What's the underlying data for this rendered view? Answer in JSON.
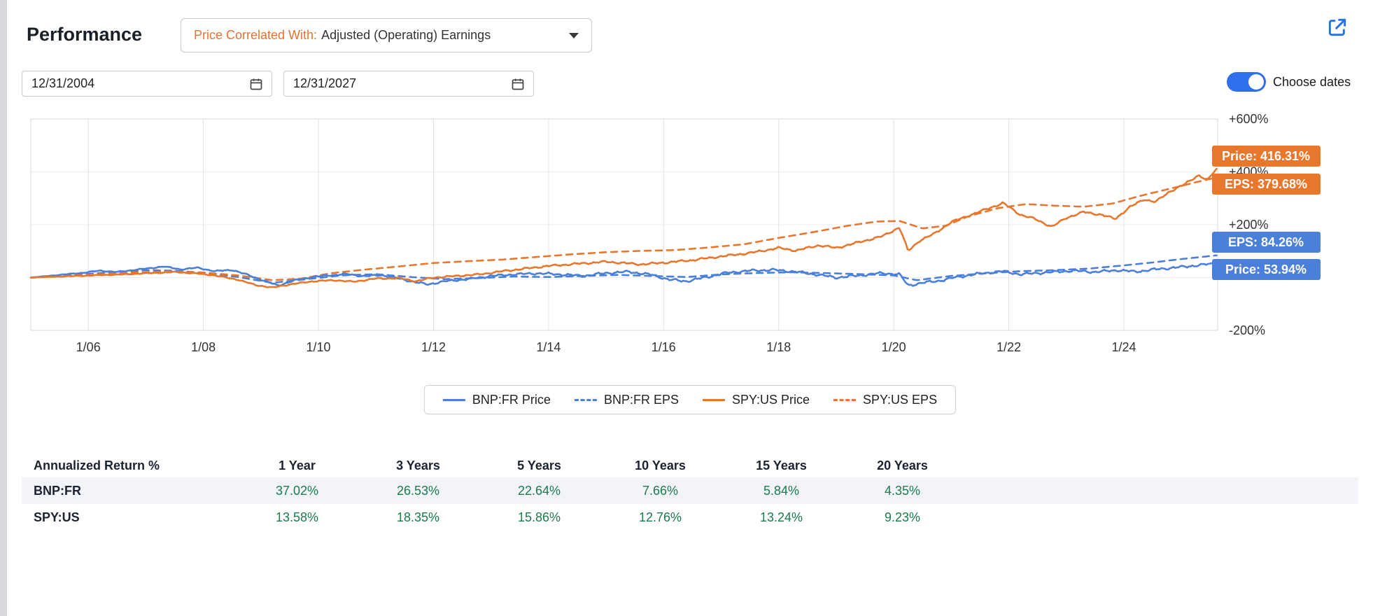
{
  "header": {
    "title": "Performance",
    "correlate_label": "Price Correlated With:",
    "correlate_value": "Adjusted (Operating) Earnings",
    "start_date": "12/31/2004",
    "end_date": "12/31/2027",
    "choose_dates_label": "Choose dates"
  },
  "colors": {
    "blue": "#4a80d9",
    "orange": "#e8772e",
    "green": "#1a7b4b",
    "grid": "#e2e2e2",
    "grid_h": "#ededed",
    "toggle_blue": "#2f6fed",
    "link_blue": "#2570e8",
    "shaded_row": "#f2f4f9"
  },
  "chart_data": {
    "type": "line",
    "x_domain": [
      2005.0,
      2025.63
    ],
    "y_domain": [
      -200,
      600
    ],
    "x_ticks": [
      {
        "year": 2006,
        "label": "1/06"
      },
      {
        "year": 2008,
        "label": "1/08"
      },
      {
        "year": 2010,
        "label": "1/10"
      },
      {
        "year": 2012,
        "label": "1/12"
      },
      {
        "year": 2014,
        "label": "1/14"
      },
      {
        "year": 2016,
        "label": "1/16"
      },
      {
        "year": 2018,
        "label": "1/18"
      },
      {
        "year": 2020,
        "label": "1/20"
      },
      {
        "year": 2022,
        "label": "1/22"
      },
      {
        "year": 2024,
        "label": "1/24"
      }
    ],
    "y_ticks": [
      {
        "value": 600,
        "label": "+600%"
      },
      {
        "value": 400,
        "label": "+400%"
      },
      {
        "value": 200,
        "label": "+200%"
      },
      {
        "value": 0,
        "label": ""
      },
      {
        "value": -200,
        "label": "-200%"
      }
    ],
    "series": [
      {
        "name": "BNP:FR Price",
        "color": "blue",
        "dash": false,
        "noise": 6,
        "seed": 1.7,
        "points": [
          [
            2005,
            0
          ],
          [
            2005.3,
            6
          ],
          [
            2005.6,
            12
          ],
          [
            2005.9,
            18
          ],
          [
            2006.2,
            26
          ],
          [
            2006.5,
            21
          ],
          [
            2006.8,
            29
          ],
          [
            2007.1,
            36
          ],
          [
            2007.3,
            42
          ],
          [
            2007.6,
            31
          ],
          [
            2007.9,
            37
          ],
          [
            2008.2,
            24
          ],
          [
            2008.5,
            29
          ],
          [
            2008.8,
            8
          ],
          [
            2009.1,
            -16
          ],
          [
            2009.3,
            -30
          ],
          [
            2009.6,
            -10
          ],
          [
            2009.9,
            2
          ],
          [
            2010.2,
            9
          ],
          [
            2010.5,
            13
          ],
          [
            2010.8,
            5
          ],
          [
            2011.1,
            9
          ],
          [
            2011.4,
            -4
          ],
          [
            2011.7,
            -18
          ],
          [
            2011.9,
            -26
          ],
          [
            2012.2,
            -14
          ],
          [
            2012.6,
            -6
          ],
          [
            2013,
            6
          ],
          [
            2013.4,
            12
          ],
          [
            2013.8,
            16
          ],
          [
            2014.2,
            12
          ],
          [
            2014.6,
            6
          ],
          [
            2015,
            17
          ],
          [
            2015.4,
            22
          ],
          [
            2015.8,
            10
          ],
          [
            2016.1,
            -8
          ],
          [
            2016.4,
            -14
          ],
          [
            2016.8,
            4
          ],
          [
            2017.1,
            18
          ],
          [
            2017.5,
            26
          ],
          [
            2017.9,
            29
          ],
          [
            2018.3,
            22
          ],
          [
            2018.7,
            10
          ],
          [
            2019,
            0
          ],
          [
            2019.4,
            8
          ],
          [
            2019.8,
            17
          ],
          [
            2020.1,
            12
          ],
          [
            2020.25,
            -30
          ],
          [
            2020.5,
            -20
          ],
          [
            2020.8,
            -12
          ],
          [
            2021.1,
            2
          ],
          [
            2021.5,
            15
          ],
          [
            2021.9,
            24
          ],
          [
            2022.2,
            12
          ],
          [
            2022.5,
            17
          ],
          [
            2022.8,
            21
          ],
          [
            2023.1,
            26
          ],
          [
            2023.5,
            21
          ],
          [
            2023.9,
            28
          ],
          [
            2024.2,
            22
          ],
          [
            2024.5,
            30
          ],
          [
            2024.8,
            36
          ],
          [
            2025.1,
            42
          ],
          [
            2025.35,
            48
          ],
          [
            2025.63,
            53.94
          ]
        ]
      },
      {
        "name": "BNP:FR EPS",
        "color": "blue",
        "dash": true,
        "noise": 0,
        "seed": 0,
        "points": [
          [
            2005,
            0
          ],
          [
            2005.5,
            7
          ],
          [
            2006,
            14
          ],
          [
            2006.5,
            21
          ],
          [
            2007,
            28
          ],
          [
            2007.5,
            26
          ],
          [
            2008,
            18
          ],
          [
            2008.6,
            2
          ],
          [
            2009.2,
            -20
          ],
          [
            2009.8,
            -6
          ],
          [
            2010.4,
            8
          ],
          [
            2011,
            13
          ],
          [
            2011.6,
            2
          ],
          [
            2012.2,
            -6
          ],
          [
            2012.8,
            -2
          ],
          [
            2013.4,
            4
          ],
          [
            2014,
            2
          ],
          [
            2014.6,
            6
          ],
          [
            2015.2,
            10
          ],
          [
            2015.8,
            6
          ],
          [
            2016.4,
            2
          ],
          [
            2017,
            12
          ],
          [
            2017.6,
            17
          ],
          [
            2018.2,
            20
          ],
          [
            2018.8,
            17
          ],
          [
            2019.4,
            13
          ],
          [
            2020,
            8
          ],
          [
            2020.4,
            -10
          ],
          [
            2021,
            6
          ],
          [
            2021.6,
            16
          ],
          [
            2022.2,
            24
          ],
          [
            2022.8,
            28
          ],
          [
            2023.4,
            34
          ],
          [
            2024,
            46
          ],
          [
            2024.5,
            57
          ],
          [
            2025,
            70
          ],
          [
            2025.63,
            84.26
          ]
        ]
      },
      {
        "name": "SPY:US Price",
        "color": "orange",
        "dash": false,
        "noise": 5,
        "seed": 4.2,
        "points": [
          [
            2005,
            0
          ],
          [
            2005.4,
            3
          ],
          [
            2005.8,
            6
          ],
          [
            2006.2,
            9
          ],
          [
            2006.6,
            12
          ],
          [
            2007,
            16
          ],
          [
            2007.5,
            21
          ],
          [
            2007.8,
            17
          ],
          [
            2008.2,
            8
          ],
          [
            2008.6,
            -8
          ],
          [
            2008.9,
            -28
          ],
          [
            2009.2,
            -38
          ],
          [
            2009.5,
            -26
          ],
          [
            2009.9,
            -14
          ],
          [
            2010.3,
            -10
          ],
          [
            2010.6,
            -16
          ],
          [
            2011,
            -4
          ],
          [
            2011.4,
            -2
          ],
          [
            2011.7,
            -14
          ],
          [
            2012,
            0
          ],
          [
            2012.4,
            6
          ],
          [
            2012.8,
            12
          ],
          [
            2013.2,
            24
          ],
          [
            2013.6,
            34
          ],
          [
            2014,
            44
          ],
          [
            2014.5,
            52
          ],
          [
            2015,
            60
          ],
          [
            2015.6,
            50
          ],
          [
            2016,
            56
          ],
          [
            2016.5,
            66
          ],
          [
            2017,
            80
          ],
          [
            2017.5,
            93
          ],
          [
            2018,
            112
          ],
          [
            2018.3,
            102
          ],
          [
            2018.7,
            122
          ],
          [
            2019,
            112
          ],
          [
            2019.4,
            134
          ],
          [
            2019.8,
            156
          ],
          [
            2020.1,
            190
          ],
          [
            2020.25,
            100
          ],
          [
            2020.45,
            140
          ],
          [
            2020.7,
            165
          ],
          [
            2021,
            210
          ],
          [
            2021.4,
            242
          ],
          [
            2021.9,
            282
          ],
          [
            2022.2,
            238
          ],
          [
            2022.45,
            222
          ],
          [
            2022.75,
            192
          ],
          [
            2023,
            226
          ],
          [
            2023.3,
            248
          ],
          [
            2023.6,
            238
          ],
          [
            2023.85,
            222
          ],
          [
            2024.1,
            266
          ],
          [
            2024.35,
            296
          ],
          [
            2024.55,
            286
          ],
          [
            2024.8,
            326
          ],
          [
            2025.05,
            352
          ],
          [
            2025.3,
            388
          ],
          [
            2025.45,
            368
          ],
          [
            2025.63,
            416.31
          ]
        ]
      },
      {
        "name": "SPY:US EPS",
        "color": "orange",
        "dash": true,
        "noise": 0,
        "seed": 0,
        "points": [
          [
            2005,
            0
          ],
          [
            2005.6,
            6
          ],
          [
            2006.2,
            13
          ],
          [
            2006.8,
            19
          ],
          [
            2007.4,
            23
          ],
          [
            2008,
            19
          ],
          [
            2008.6,
            8
          ],
          [
            2009.2,
            -10
          ],
          [
            2009.7,
            -4
          ],
          [
            2010.2,
            16
          ],
          [
            2010.8,
            30
          ],
          [
            2011.4,
            42
          ],
          [
            2012,
            55
          ],
          [
            2012.6,
            62
          ],
          [
            2013.2,
            68
          ],
          [
            2013.8,
            78
          ],
          [
            2014.4,
            88
          ],
          [
            2015,
            96
          ],
          [
            2015.6,
            101
          ],
          [
            2016.2,
            104
          ],
          [
            2016.8,
            114
          ],
          [
            2017.4,
            126
          ],
          [
            2018,
            150
          ],
          [
            2018.6,
            172
          ],
          [
            2019.2,
            196
          ],
          [
            2019.7,
            212
          ],
          [
            2020.1,
            214
          ],
          [
            2020.5,
            186
          ],
          [
            2020.9,
            196
          ],
          [
            2021.3,
            232
          ],
          [
            2021.8,
            262
          ],
          [
            2022.3,
            278
          ],
          [
            2022.8,
            272
          ],
          [
            2023.3,
            268
          ],
          [
            2023.8,
            280
          ],
          [
            2024.3,
            310
          ],
          [
            2024.8,
            336
          ],
          [
            2025.2,
            358
          ],
          [
            2025.63,
            379.68
          ]
        ]
      }
    ],
    "end_labels": [
      {
        "text": "Price: 416.31%",
        "color": "orange",
        "y_center": 223
      },
      {
        "text": "EPS: 379.68%",
        "color": "orange",
        "y_center": 263
      },
      {
        "text": "EPS: 84.26%",
        "color": "blue",
        "y_center": 346
      },
      {
        "text": "Price: 53.94%",
        "color": "blue",
        "y_center": 385
      }
    ],
    "legend_position": "bottom-center",
    "grid": true
  },
  "table": {
    "header": [
      "Annualized Return %",
      "1 Year",
      "3 Years",
      "5 Years",
      "10 Years",
      "15 Years",
      "20 Years"
    ],
    "rows": [
      {
        "label": "BNP:FR",
        "values": [
          "37.02%",
          "26.53%",
          "22.64%",
          "7.66%",
          "5.84%",
          "4.35%"
        ],
        "shaded": true
      },
      {
        "label": "SPY:US",
        "values": [
          "13.58%",
          "18.35%",
          "15.86%",
          "12.76%",
          "13.24%",
          "9.23%"
        ],
        "shaded": false
      }
    ]
  }
}
